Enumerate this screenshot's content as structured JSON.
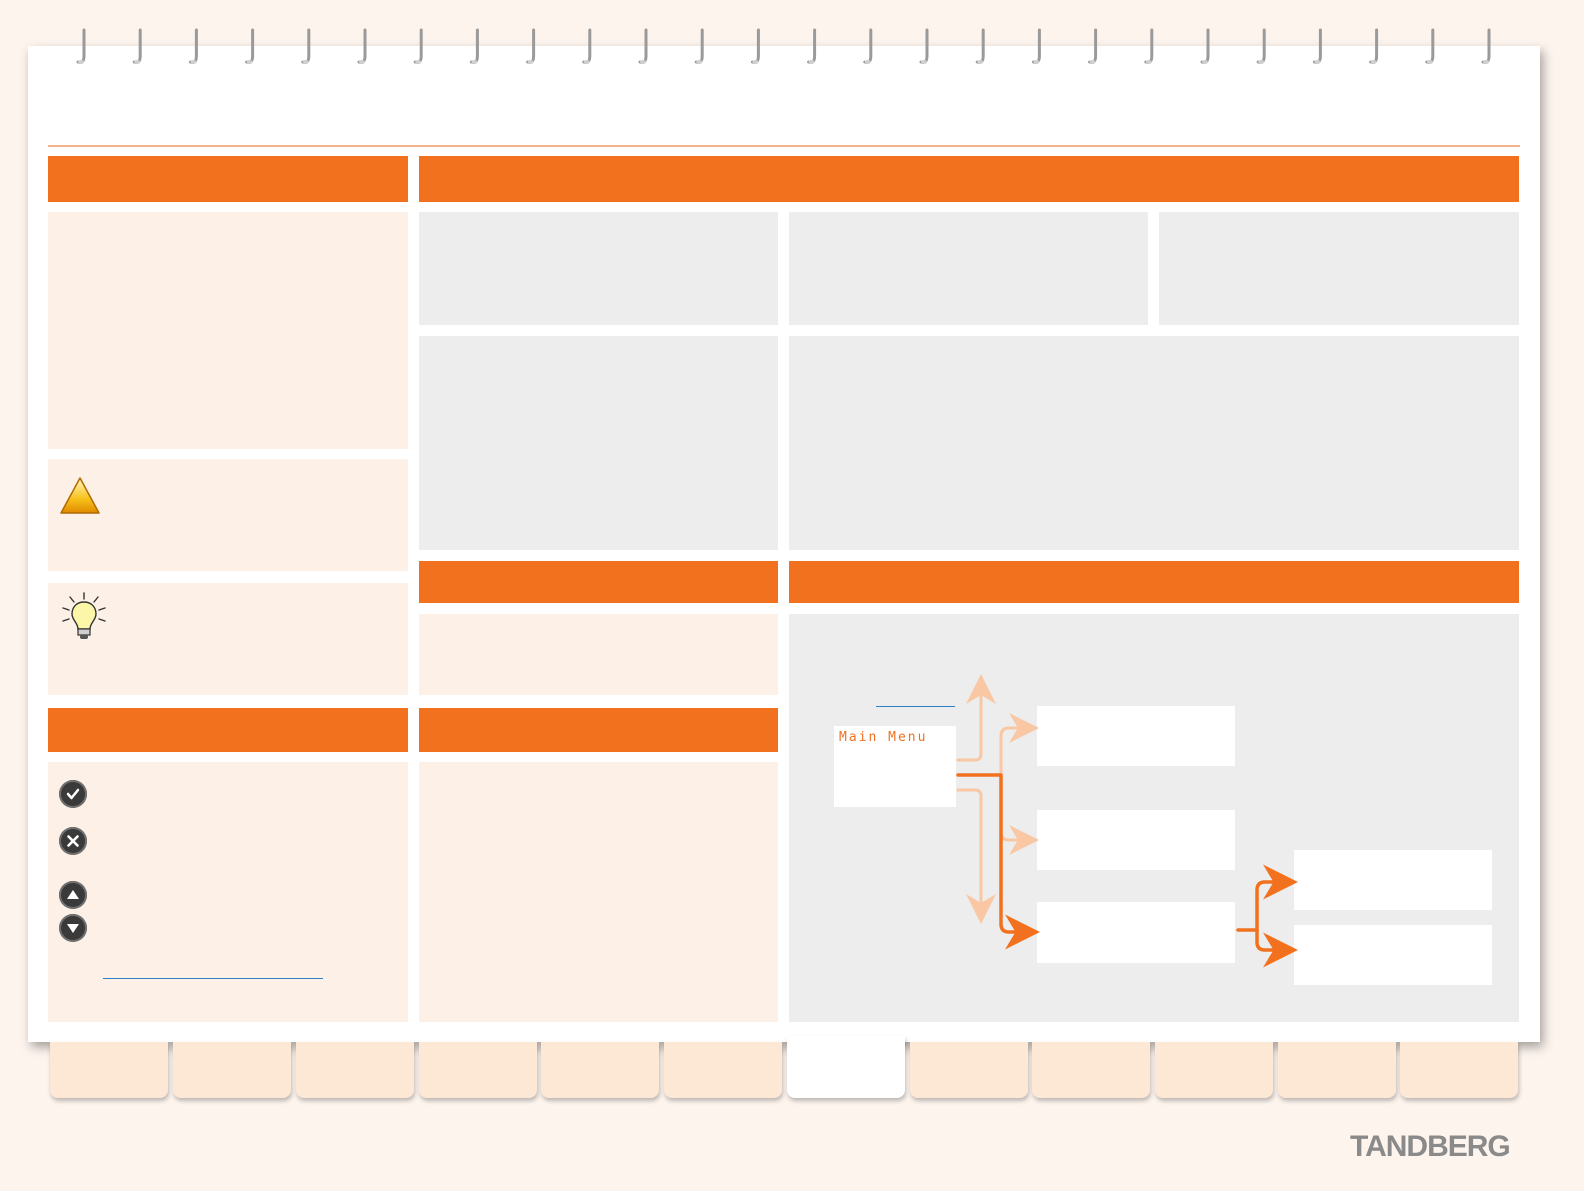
{
  "diagram": {
    "main_menu_label": "Main Menu"
  },
  "branding": {
    "logo_text": "TANDBERG"
  },
  "icons": {
    "warning": "warning-triangle-icon",
    "tip": "lightbulb-icon",
    "ok": "check-circle-icon",
    "cancel": "x-circle-icon",
    "up": "arrow-up-circle-icon",
    "down": "arrow-down-circle-icon"
  },
  "colors": {
    "accent": "#f2711f",
    "accent_light": "#f9c7a3",
    "panel_cream": "#fdf0e6",
    "panel_grey": "#ededed",
    "link": "#2f7fc8"
  }
}
